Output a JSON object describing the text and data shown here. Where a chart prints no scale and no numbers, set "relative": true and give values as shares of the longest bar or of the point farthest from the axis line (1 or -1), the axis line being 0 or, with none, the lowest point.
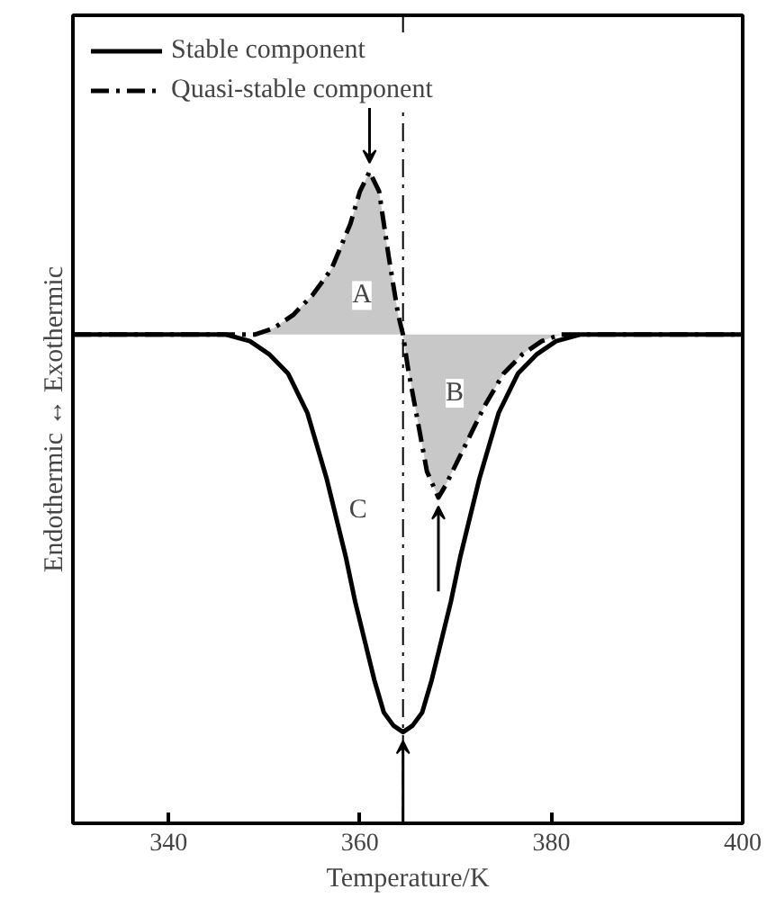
{
  "chart_data": {
    "type": "line",
    "xlabel": "Temperature/K",
    "ylabel": "Endothermic ↔ Exothermic",
    "relative": true,
    "xlim": [
      330,
      400
    ],
    "xticks": [
      340,
      360,
      380,
      400
    ],
    "legend": "top left",
    "grid": false,
    "series": [
      {
        "name": "Stable component",
        "color": "#000000",
        "line_style": "solid",
        "x": [
          330,
          346,
          348.5,
          350.5,
          352.5,
          354.5,
          356.5,
          358.5,
          359.5,
          360.5,
          361.5,
          362.5,
          363.5,
          364.5,
          365.5,
          366.5,
          367.5,
          368.5,
          369.5,
          370.5,
          372.5,
          374.5,
          376.5,
          378.5,
          380.5,
          383,
          400
        ],
        "values": [
          0.75,
          0.75,
          0.74,
          0.72,
          0.69,
          0.63,
          0.53,
          0.41,
          0.34,
          0.28,
          0.22,
          0.17,
          0.15,
          0.14,
          0.15,
          0.17,
          0.22,
          0.28,
          0.34,
          0.41,
          0.53,
          0.63,
          0.69,
          0.72,
          0.74,
          0.75,
          0.75
        ]
      },
      {
        "name": "Quasi-stable component",
        "type": "area",
        "color": "#000000",
        "line_style": "dashdot",
        "x": [
          330,
          347,
          349,
          351,
          353,
          355,
          357,
          359,
          360,
          361,
          362,
          363,
          364,
          364.5,
          365,
          366,
          367,
          368.2,
          369,
          371,
          373,
          375,
          377,
          379,
          381,
          400
        ],
        "values": [
          0.75,
          0.75,
          0.75,
          0.76,
          0.78,
          0.81,
          0.85,
          0.92,
          0.97,
          1.0,
          0.97,
          0.87,
          0.78,
          0.75,
          0.7,
          0.62,
          0.54,
          0.5,
          0.52,
          0.58,
          0.64,
          0.69,
          0.72,
          0.74,
          0.75,
          0.75
        ]
      }
    ],
    "ref_lines": [
      {
        "axis": "x",
        "value": 364.5,
        "line_style": "dashdot",
        "color": "#000000"
      }
    ],
    "annotations": [
      {
        "text": "A",
        "x": 360.2,
        "y": 0.81
      },
      {
        "text": "B",
        "x": 369.9,
        "y": 0.66
      },
      {
        "text": "C",
        "x": 359.8,
        "y": 0.48
      }
    ]
  }
}
